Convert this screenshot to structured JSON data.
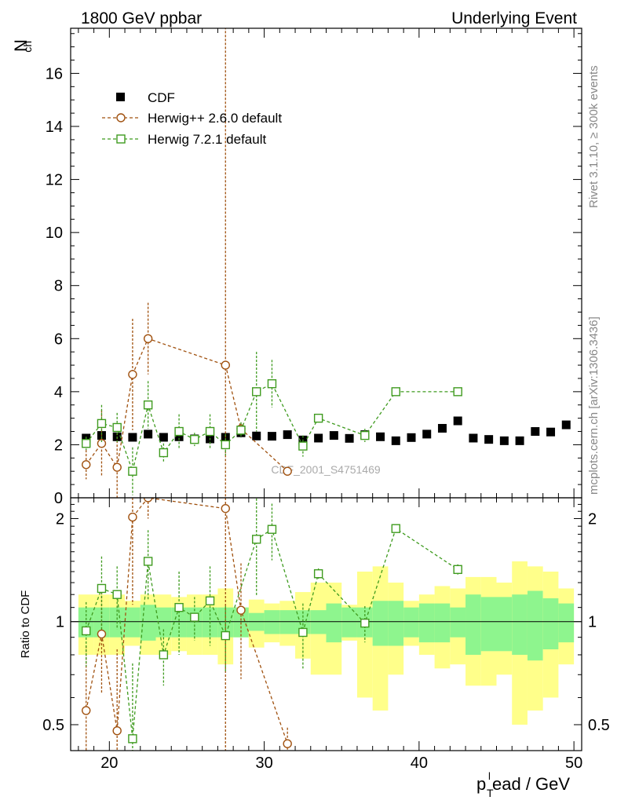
{
  "header": {
    "left_title": "1800 GeV ppbar",
    "right_title": "Underlying Event"
  },
  "side_notes": {
    "rivet": "Rivet 3.1.10, ≥ 300k events",
    "mcplots": "mcplots.cern.ch [arXiv:1306.3436]"
  },
  "watermark": "CDF_2001_S4751469",
  "axes": {
    "ylabel_main": "N",
    "ylabel_main_sub": "ch",
    "ylabel_ratio": "Ratio to CDF",
    "xlabel_p": "p",
    "xlabel_sub": "T",
    "xlabel_sup": "l",
    "xlabel_rest": "ead / GeV"
  },
  "colors": {
    "cdf": "#000000",
    "herwigpp": "#a0510f",
    "herwig7": "#3f9b1f",
    "band_inner": "#8ef58e",
    "band_outer": "#ffff8a"
  },
  "chart_data": [
    {
      "type": "scatter",
      "panel": "main",
      "xlim": [
        17.5,
        50.5
      ],
      "ylim": [
        0,
        17.7
      ],
      "yticks": [
        0,
        2,
        4,
        6,
        8,
        10,
        12,
        14,
        16
      ],
      "xticks": [
        20,
        30,
        40,
        50
      ],
      "legend_position": "top-left",
      "series": [
        {
          "name": "CDF",
          "style": "marker-square-filled",
          "points": [
            [
              18.5,
              2.25
            ],
            [
              19.5,
              2.35
            ],
            [
              20.5,
              2.3
            ],
            [
              21.5,
              2.28
            ],
            [
              22.5,
              2.4
            ],
            [
              23.5,
              2.28
            ],
            [
              24.5,
              2.3
            ],
            [
              25.5,
              2.22
            ],
            [
              26.5,
              2.22
            ],
            [
              27.5,
              2.28
            ],
            [
              28.5,
              2.45
            ],
            [
              29.5,
              2.33
            ],
            [
              30.5,
              2.32
            ],
            [
              31.5,
              2.38
            ],
            [
              32.5,
              2.18
            ],
            [
              33.5,
              2.25
            ],
            [
              34.5,
              2.35
            ],
            [
              35.5,
              2.24
            ],
            [
              36.5,
              2.38
            ],
            [
              37.5,
              2.3
            ],
            [
              38.5,
              2.15
            ],
            [
              39.5,
              2.27
            ],
            [
              40.5,
              2.4
            ],
            [
              41.5,
              2.62
            ],
            [
              42.5,
              2.9
            ],
            [
              43.5,
              2.25
            ],
            [
              44.5,
              2.2
            ],
            [
              45.5,
              2.15
            ],
            [
              46.5,
              2.15
            ],
            [
              47.5,
              2.5
            ],
            [
              48.5,
              2.48
            ],
            [
              49.5,
              2.75
            ]
          ]
        },
        {
          "name": "Herwig++ 2.6.0 default",
          "style": "marker-circle-open-dashed",
          "points": [
            [
              18.5,
              1.25,
              0.55
            ],
            [
              19.5,
              2.05,
              1.25
            ],
            [
              20.5,
              1.15,
              1.3
            ],
            [
              21.5,
              4.65,
              2.1
            ],
            [
              22.5,
              6.0,
              1.35
            ],
            [
              27.5,
              5.0,
              20.0
            ],
            [
              28.5,
              2.6,
              0.2
            ],
            [
              31.5,
              1.0,
              0.15
            ]
          ]
        },
        {
          "name": "Herwig 7.2.1 default",
          "style": "marker-square-open-dashed",
          "points": [
            [
              18.5,
              2.05,
              0.25
            ],
            [
              19.5,
              2.8,
              0.7
            ],
            [
              20.5,
              2.65,
              0.55
            ],
            [
              21.5,
              1.0,
              0.9
            ],
            [
              22.5,
              3.5,
              0.9
            ],
            [
              23.5,
              1.7,
              0.35
            ],
            [
              24.5,
              2.5,
              0.65
            ],
            [
              25.5,
              2.2,
              0.25
            ],
            [
              26.5,
              2.5,
              0.65
            ],
            [
              27.5,
              2.0,
              0.4
            ],
            [
              28.5,
              2.55,
              0.3
            ],
            [
              29.5,
              4.0,
              1.5
            ],
            [
              30.5,
              4.3,
              0.9
            ],
            [
              32.5,
              1.95,
              0.4
            ],
            [
              33.5,
              3.0,
              0.05
            ],
            [
              36.5,
              2.35,
              0.25
            ],
            [
              38.5,
              4.0,
              0.05
            ],
            [
              42.5,
              4.0,
              0.05
            ]
          ]
        }
      ]
    },
    {
      "type": "scatter",
      "panel": "ratio",
      "xlim": [
        17.5,
        50.5
      ],
      "ylim": [
        0.42,
        2.3
      ],
      "log_y": true,
      "yticks": [
        0.5,
        1,
        2
      ],
      "xticks": [
        20,
        30,
        40,
        50
      ],
      "bands": {
        "bins": [
          18,
          19,
          20,
          21,
          22,
          23,
          24,
          25,
          26,
          27,
          28,
          29,
          30,
          31,
          32,
          33,
          34,
          35,
          36,
          37,
          38,
          39,
          40,
          41,
          42,
          43,
          44,
          45,
          46,
          47,
          48,
          49,
          50
        ],
        "inner": [
          0.1,
          0.1,
          0.1,
          0.1,
          0.12,
          0.1,
          0.1,
          0.1,
          0.1,
          0.1,
          0.1,
          0.06,
          0.08,
          0.08,
          0.08,
          0.08,
          0.13,
          0.1,
          0.1,
          0.15,
          0.15,
          0.1,
          0.13,
          0.13,
          0.1,
          0.2,
          0.18,
          0.18,
          0.2,
          0.23,
          0.17,
          0.13
        ],
        "outer": [
          0.2,
          0.2,
          0.2,
          0.15,
          0.2,
          0.2,
          0.18,
          0.2,
          0.2,
          0.25,
          0.1,
          0.16,
          0.13,
          0.15,
          0.22,
          0.3,
          0.3,
          0.12,
          0.4,
          0.45,
          0.3,
          0.15,
          0.2,
          0.27,
          0.25,
          0.35,
          0.35,
          0.3,
          0.5,
          0.45,
          0.4,
          0.25
        ]
      },
      "series": [
        {
          "name": "Herwig++ 2.6.0 default",
          "points": [
            [
              18.5,
              0.55,
              0.3
            ],
            [
              19.5,
              0.92,
              0.3
            ],
            [
              20.5,
              0.48,
              0.35
            ],
            [
              21.5,
              2.02,
              0.9
            ],
            [
              22.5,
              2.5,
              0.5
            ],
            [
              27.5,
              2.14,
              3.0
            ],
            [
              28.5,
              1.08,
              0.4
            ],
            [
              31.5,
              0.44,
              0.05
            ]
          ]
        },
        {
          "name": "Herwig 7.2.1 default",
          "points": [
            [
              18.5,
              0.94,
              0.2
            ],
            [
              19.5,
              1.25,
              0.3
            ],
            [
              20.5,
              1.2,
              0.25
            ],
            [
              21.5,
              0.455,
              0.3
            ],
            [
              22.5,
              1.5,
              0.35
            ],
            [
              23.5,
              0.8,
              0.15
            ],
            [
              24.5,
              1.1,
              0.3
            ],
            [
              25.5,
              1.03,
              0.15
            ],
            [
              26.5,
              1.15,
              0.3
            ],
            [
              27.5,
              0.91,
              0.2
            ],
            [
              29.5,
              1.74,
              0.55
            ],
            [
              30.5,
              1.86,
              0.35
            ],
            [
              32.5,
              0.93,
              0.2
            ],
            [
              33.5,
              1.38,
              0.05
            ],
            [
              36.5,
              0.99,
              0.12
            ],
            [
              38.5,
              1.87,
              0.05
            ],
            [
              42.5,
              1.42,
              0.05
            ]
          ]
        }
      ]
    }
  ]
}
